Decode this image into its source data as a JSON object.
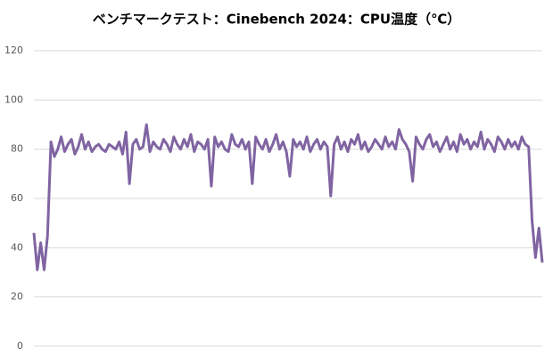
{
  "chart_data": {
    "type": "line",
    "title": "ベンチマークテスト：Cinebench 2024：CPU温度（℃）",
    "series": [
      {
        "color": "#8064a2",
        "values": [
          46,
          31,
          42,
          31,
          45,
          83,
          77,
          80,
          85,
          79,
          82,
          84,
          78,
          81,
          86,
          80,
          83,
          79,
          81,
          82,
          80,
          79,
          82,
          81,
          80,
          83,
          78,
          87,
          66,
          82,
          84,
          80,
          81,
          90,
          79,
          83,
          81,
          80,
          84,
          82,
          79,
          85,
          82,
          80,
          84,
          81,
          86,
          79,
          83,
          82,
          80,
          84,
          65,
          85,
          81,
          83,
          80,
          79,
          86,
          82,
          81,
          84,
          80,
          83,
          66,
          85,
          82,
          80,
          84,
          79,
          82,
          86,
          80,
          83,
          79,
          69,
          84,
          81,
          83,
          80,
          85,
          79,
          82,
          84,
          80,
          83,
          81,
          61,
          82,
          85,
          80,
          83,
          79,
          84,
          82,
          86,
          80,
          83,
          79,
          81,
          84,
          82,
          80,
          85,
          81,
          83,
          80,
          88,
          84,
          82,
          79,
          67,
          85,
          82,
          80,
          84,
          86,
          81,
          83,
          79,
          82,
          85,
          80,
          83,
          79,
          86,
          82,
          84,
          80,
          83,
          81,
          87,
          80,
          84,
          82,
          79,
          85,
          83,
          80,
          84,
          81,
          83,
          80,
          85,
          82,
          81,
          51,
          36,
          48,
          34
        ]
      }
    ],
    "ylim": [
      0,
      120
    ],
    "yticks": [
      0,
      20,
      40,
      60,
      80,
      100,
      120
    ],
    "grid": true
  }
}
